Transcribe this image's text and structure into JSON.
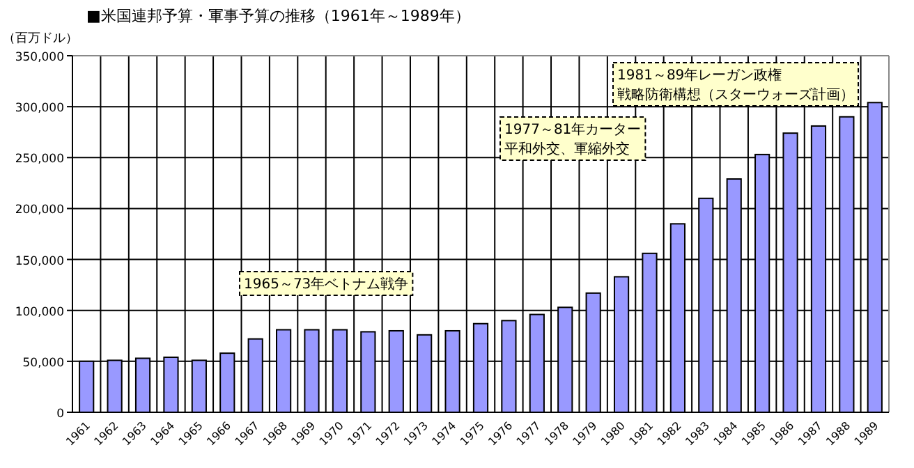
{
  "chart_data": {
    "type": "bar",
    "title": "■米国連邦予算・軍事予算の推移（1961年～1989年）",
    "ylabel": "（百万ドル）",
    "categories": [
      "1961",
      "1962",
      "1963",
      "1964",
      "1965",
      "1966",
      "1967",
      "1968",
      "1969",
      "1970",
      "1971",
      "1972",
      "1973",
      "1974",
      "1975",
      "1976",
      "1977",
      "1978",
      "1979",
      "1980",
      "1981",
      "1982",
      "1983",
      "1984",
      "1985",
      "1986",
      "1987",
      "1988",
      "1989"
    ],
    "values": [
      50000,
      51000,
      53000,
      54000,
      51000,
      58000,
      72000,
      81000,
      81000,
      81000,
      79000,
      80000,
      76000,
      80000,
      87000,
      90000,
      96000,
      103000,
      117000,
      133000,
      156000,
      185000,
      210000,
      229000,
      253000,
      274000,
      281000,
      290000,
      304000
    ],
    "color": "#9999ff",
    "ylim": [
      0,
      350000
    ],
    "yticks": [
      {
        "value": 0,
        "label": "0"
      },
      {
        "value": 50000,
        "label": "50,000"
      },
      {
        "value": 100000,
        "label": "100,000"
      },
      {
        "value": 150000,
        "label": "150,000"
      },
      {
        "value": 200000,
        "label": "200,000"
      },
      {
        "value": 250000,
        "label": "250,000"
      },
      {
        "value": 300000,
        "label": "300,000"
      },
      {
        "value": 350000,
        "label": "350,000"
      }
    ],
    "grid": true,
    "annotations": [
      "1965～73年ベトナム戦争",
      "1977～81年カーター",
      "平和外交、軍縮外交",
      "1981～89年レーガン政権",
      "戦略防衛構想（スターウォーズ計画）"
    ]
  }
}
